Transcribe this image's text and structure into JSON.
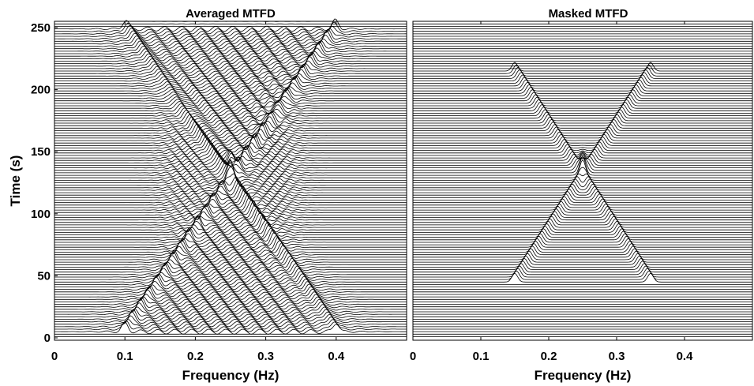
{
  "chart_data": [
    {
      "type": "line",
      "title": "Averaged MTFD",
      "xlabel": "Frequency (Hz)",
      "ylabel": "Time (s)",
      "xlim": [
        0,
        0.5
      ],
      "ylim": [
        0,
        256
      ],
      "x_ticks": [
        0,
        0.1,
        0.2,
        0.3,
        0.4
      ],
      "x_tick_labels": [
        "0",
        "0.1",
        "0.2",
        "0.3",
        "0.4"
      ],
      "y_ticks": [
        0,
        50,
        100,
        150,
        200,
        250
      ],
      "y_tick_labels": [
        "0",
        "50",
        "100",
        "150",
        "200",
        "250"
      ],
      "trace_spacing": 2,
      "time_range": [
        0,
        256
      ],
      "ridges": [
        {
          "name": "",
          "f_start": 0.1,
          "f_end": 0.4,
          "t_start": 5,
          "t_end": 250
        },
        {
          "name": "",
          "f_start": 0.4,
          "f_end": 0.1,
          "t_start": 5,
          "t_end": 250
        }
      ],
      "cross_terms": true,
      "crossing_point": {
        "f": 0.25,
        "t": 140
      }
    },
    {
      "type": "line",
      "title": "Masked MTFD",
      "xlabel": "Frequency (Hz)",
      "ylabel": "",
      "xlim": [
        0,
        0.5
      ],
      "ylim": [
        0,
        256
      ],
      "x_ticks": [
        0,
        0.1,
        0.2,
        0.3,
        0.4
      ],
      "x_tick_labels": [
        "0",
        "0.1",
        "0.2",
        "0.3",
        "0.4"
      ],
      "trace_spacing": 2,
      "time_range": [
        0,
        256
      ],
      "ridges": [
        {
          "name": "",
          "f_start": 0.15,
          "f_end": 0.35,
          "t_start": 45,
          "t_end": 215
        },
        {
          "name": "",
          "f_start": 0.35,
          "f_end": 0.15,
          "t_start": 45,
          "t_end": 215
        }
      ],
      "cross_terms": false,
      "crossing_point": {
        "f": 0.25,
        "t": 140
      }
    }
  ]
}
